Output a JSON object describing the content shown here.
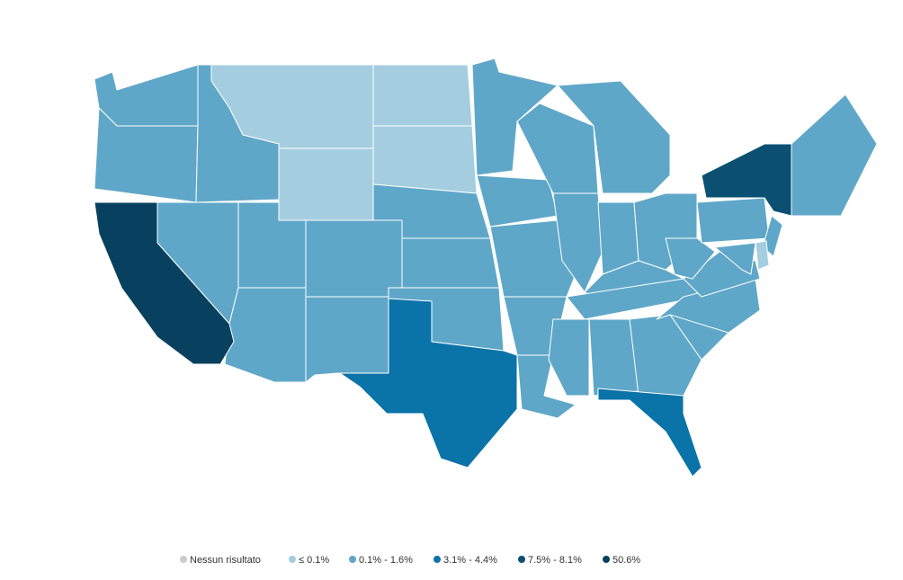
{
  "legend": {
    "items": [
      {
        "label": "Nessun risultato",
        "color": "#cccccc"
      },
      {
        "label": "≤ 0.1%",
        "color": "#a4cde0"
      },
      {
        "label": "0.1% - 1.6%",
        "color": "#5fa7c8"
      },
      {
        "label": "3.1% - 4.4%",
        "color": "#0a73a8"
      },
      {
        "label": "7.5% - 8.1%",
        "color": "#0b4f72"
      },
      {
        "label": "50.6%",
        "color": "#08415f"
      }
    ]
  }
}
